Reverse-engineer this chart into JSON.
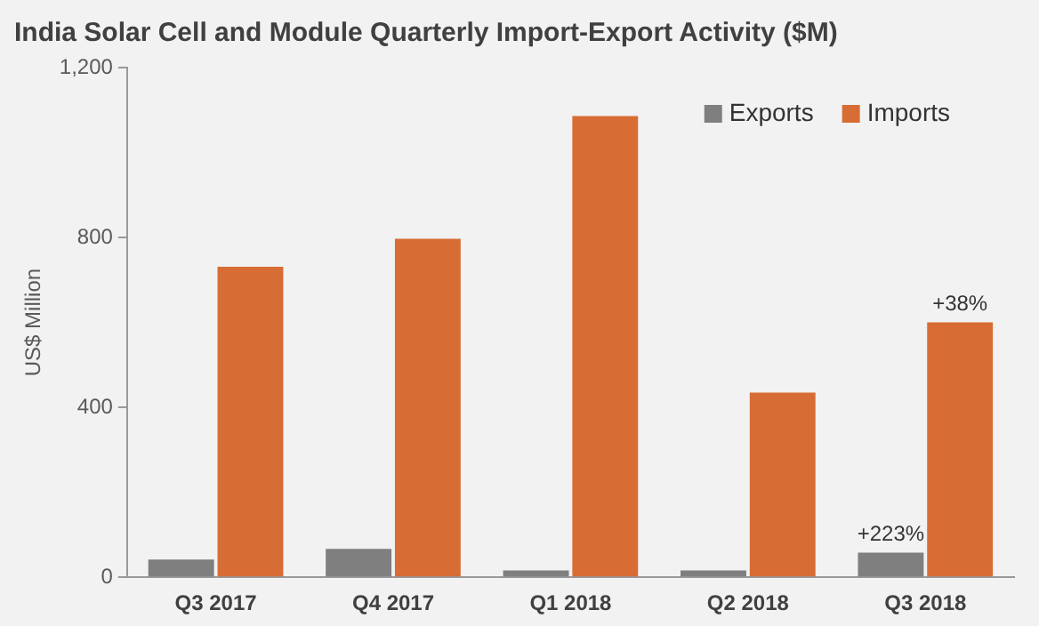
{
  "chart_data": {
    "type": "bar",
    "title": "India Solar Cell and Module Quarterly Import-Export Activity ($M)",
    "ylabel": "US$ Million",
    "categories": [
      "Q3 2017",
      "Q4 2017",
      "Q1 2018",
      "Q2 2018",
      "Q3 2018"
    ],
    "series": [
      {
        "name": "Exports",
        "color": "#7f7f7f",
        "values": [
          42,
          67,
          16,
          16,
          58
        ]
      },
      {
        "name": "Imports",
        "color": "#d76d35",
        "values": [
          731,
          797,
          1086,
          435,
          600
        ]
      }
    ],
    "ylim": [
      0,
      1200
    ],
    "yticks": [
      0,
      {
        "value": 400,
        "label": "400"
      },
      {
        "value": 800,
        "label": "800"
      },
      {
        "value": 1200,
        "label": "1,200"
      }
    ],
    "grid": false,
    "legend": "top right",
    "annotations": [
      {
        "text": "+223%",
        "x": "Q3 2018",
        "y": 58
      },
      {
        "text": "+38%",
        "x": "Q3 2018",
        "y": 600
      }
    ]
  }
}
